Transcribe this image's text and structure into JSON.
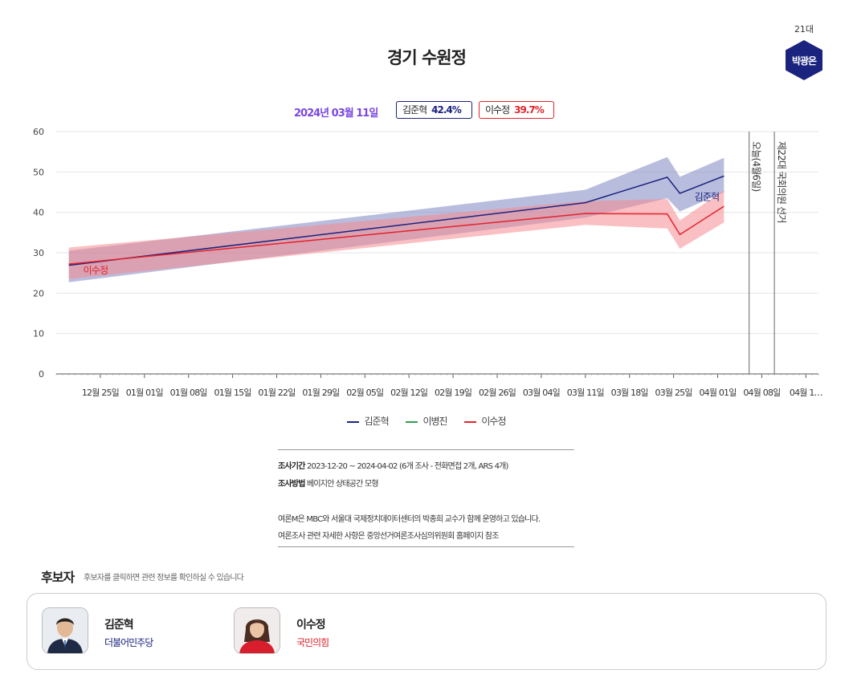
{
  "page": {
    "title": "경기 수원정",
    "incumbent": {
      "term": "21대",
      "name": "박광온"
    }
  },
  "summary": {
    "date": "2024년 03월 11일",
    "candidates": [
      {
        "name": "김준혁",
        "value": "42.4%"
      },
      {
        "name": "이수정",
        "value": "39.7%"
      }
    ]
  },
  "colors": {
    "kim": "#1a237e",
    "kim_band": "#7f86c1",
    "lee": "#e2232c",
    "lee_band": "#f58b90",
    "lee_jin": "#2e9e4f",
    "accent_purple": "#7b48e0",
    "incumbent_badge": "#1a237e"
  },
  "chart_data": {
    "type": "line",
    "ylim": [
      0,
      60
    ],
    "yticks": [
      0,
      10,
      20,
      30,
      40,
      50,
      60
    ],
    "xlim": [
      "2023-12-18",
      "2024-04-17"
    ],
    "xticks": [
      {
        "date": "2023-12-25",
        "label": "12월 25일"
      },
      {
        "date": "2024-01-01",
        "label": "01월 01일"
      },
      {
        "date": "2024-01-08",
        "label": "01월 08일"
      },
      {
        "date": "2024-01-15",
        "label": "01월 15일"
      },
      {
        "date": "2024-01-22",
        "label": "01월 22일"
      },
      {
        "date": "2024-01-29",
        "label": "01월 29일"
      },
      {
        "date": "2024-02-05",
        "label": "02월 05일"
      },
      {
        "date": "2024-02-12",
        "label": "02월 12일"
      },
      {
        "date": "2024-02-19",
        "label": "02월 19일"
      },
      {
        "date": "2024-02-26",
        "label": "02월 26일"
      },
      {
        "date": "2024-03-04",
        "label": "03월 04일"
      },
      {
        "date": "2024-03-11",
        "label": "03월 11일"
      },
      {
        "date": "2024-03-18",
        "label": "03월 18일"
      },
      {
        "date": "2024-03-25",
        "label": "03월 25일"
      },
      {
        "date": "2024-04-01",
        "label": "04월 01일"
      },
      {
        "date": "2024-04-08",
        "label": "04월 08일"
      },
      {
        "date": "2024-04-15",
        "label": "04월 1…"
      }
    ],
    "series": [
      {
        "name": "김준혁",
        "color": "#1a237e",
        "band_color": "#7f86c1",
        "points": [
          {
            "x": "2023-12-20",
            "y": 26.9,
            "lo": 22.7,
            "hi": 30.5
          },
          {
            "x": "2024-03-11",
            "y": 42.4,
            "lo": 38.7,
            "hi": 45.6
          },
          {
            "x": "2024-03-24",
            "y": 48.7,
            "lo": 43.5,
            "hi": 53.7
          },
          {
            "x": "2024-03-26",
            "y": 44.7,
            "lo": 40.2,
            "hi": 48.8
          },
          {
            "x": "2024-04-02",
            "y": 49.0,
            "lo": 45.0,
            "hi": 53.5
          }
        ]
      },
      {
        "name": "이병진",
        "color": "#2e9e4f",
        "points": []
      },
      {
        "name": "이수정",
        "color": "#e2232c",
        "band_color": "#f58b90",
        "points": [
          {
            "x": "2023-12-20",
            "y": 27.2,
            "lo": 23.5,
            "hi": 31.3
          },
          {
            "x": "2024-03-11",
            "y": 39.7,
            "lo": 36.9,
            "hi": 42.8
          },
          {
            "x": "2024-03-24",
            "y": 39.6,
            "lo": 36.0,
            "hi": 43.3
          },
          {
            "x": "2024-03-26",
            "y": 34.5,
            "lo": 31.0,
            "hi": 38.0
          },
          {
            "x": "2024-04-02",
            "y": 41.5,
            "lo": 37.5,
            "hi": 45.5
          }
        ]
      }
    ],
    "point_labels": [
      {
        "series": "김준혁",
        "text": "김준혁"
      },
      {
        "series": "이수정",
        "text": "이수정"
      }
    ],
    "markers": [
      {
        "date": "2024-04-06",
        "label": "오늘(4월6일)"
      },
      {
        "date": "2024-04-10",
        "label": "제22대 국회의원 선거"
      }
    ],
    "legend": {
      "position": "bottom",
      "items": [
        "김준혁",
        "이병진",
        "이수정"
      ]
    },
    "grid": true
  },
  "survey": {
    "period_label": "조사기간",
    "period_text": "2023-12-20 ~ 2024-04-02 (6개 조사 - 전화면접 2개, ARS 4개)",
    "method_label": "조사방법",
    "method_text": "베이지안 상태공간 모형",
    "note1": "여론M은 MBC와 서울대 국제정치데이터센터의 박종희 교수가 함께 운영하고 있습니다.",
    "note2": "여론조사 관련 자세한 사항은 중앙선거여론조사심의위원회 홈페이지 참조"
  },
  "candidates_section": {
    "title": "후보자",
    "hint": "후보자를 클릭하면 관련 정보를 확인하실 수 있습니다",
    "items": [
      {
        "name": "김준혁",
        "party": "더불어민주당",
        "party_color": "#1a237e"
      },
      {
        "name": "이수정",
        "party": "국민의힘",
        "party_color": "#e2232c"
      }
    ]
  }
}
